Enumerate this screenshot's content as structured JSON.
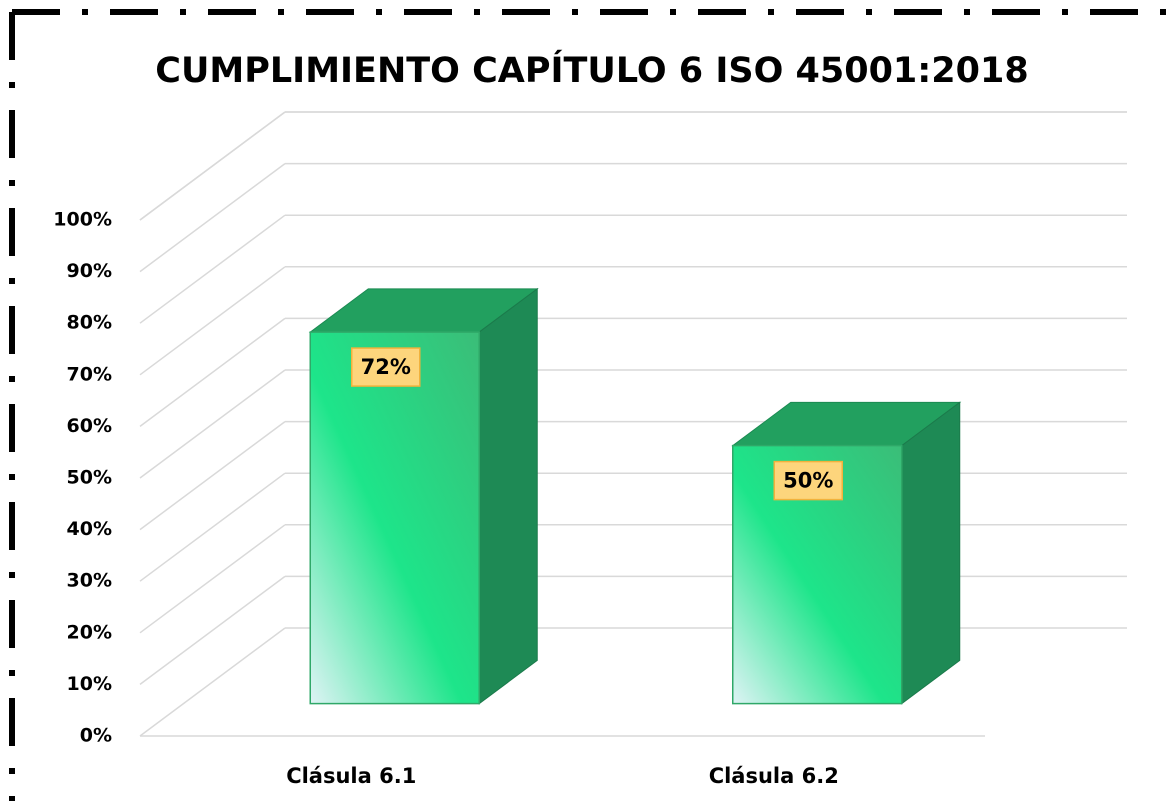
{
  "chart_data": {
    "type": "bar3d",
    "title": "CUMPLIMIENTO CAPÍTULO 6 ISO 45001:2018",
    "categories": [
      "Clásula 6.1",
      "Clásula 6.2"
    ],
    "values": [
      72,
      50
    ],
    "value_labels": [
      "72%",
      "50%"
    ],
    "color": "#1de58a",
    "ylim": [
      0,
      100
    ],
    "yticks": [
      {
        "value": 0,
        "label": "0%"
      },
      {
        "value": 10,
        "label": "10%"
      },
      {
        "value": 20,
        "label": "20%"
      },
      {
        "value": 30,
        "label": "30%"
      },
      {
        "value": 40,
        "label": "40%"
      },
      {
        "value": 50,
        "label": "50%"
      },
      {
        "value": 60,
        "label": "60%"
      },
      {
        "value": 70,
        "label": "70%"
      },
      {
        "value": 80,
        "label": "80%"
      },
      {
        "value": 90,
        "label": "90%"
      },
      {
        "value": 100,
        "label": "100%"
      }
    ],
    "grid": true
  }
}
